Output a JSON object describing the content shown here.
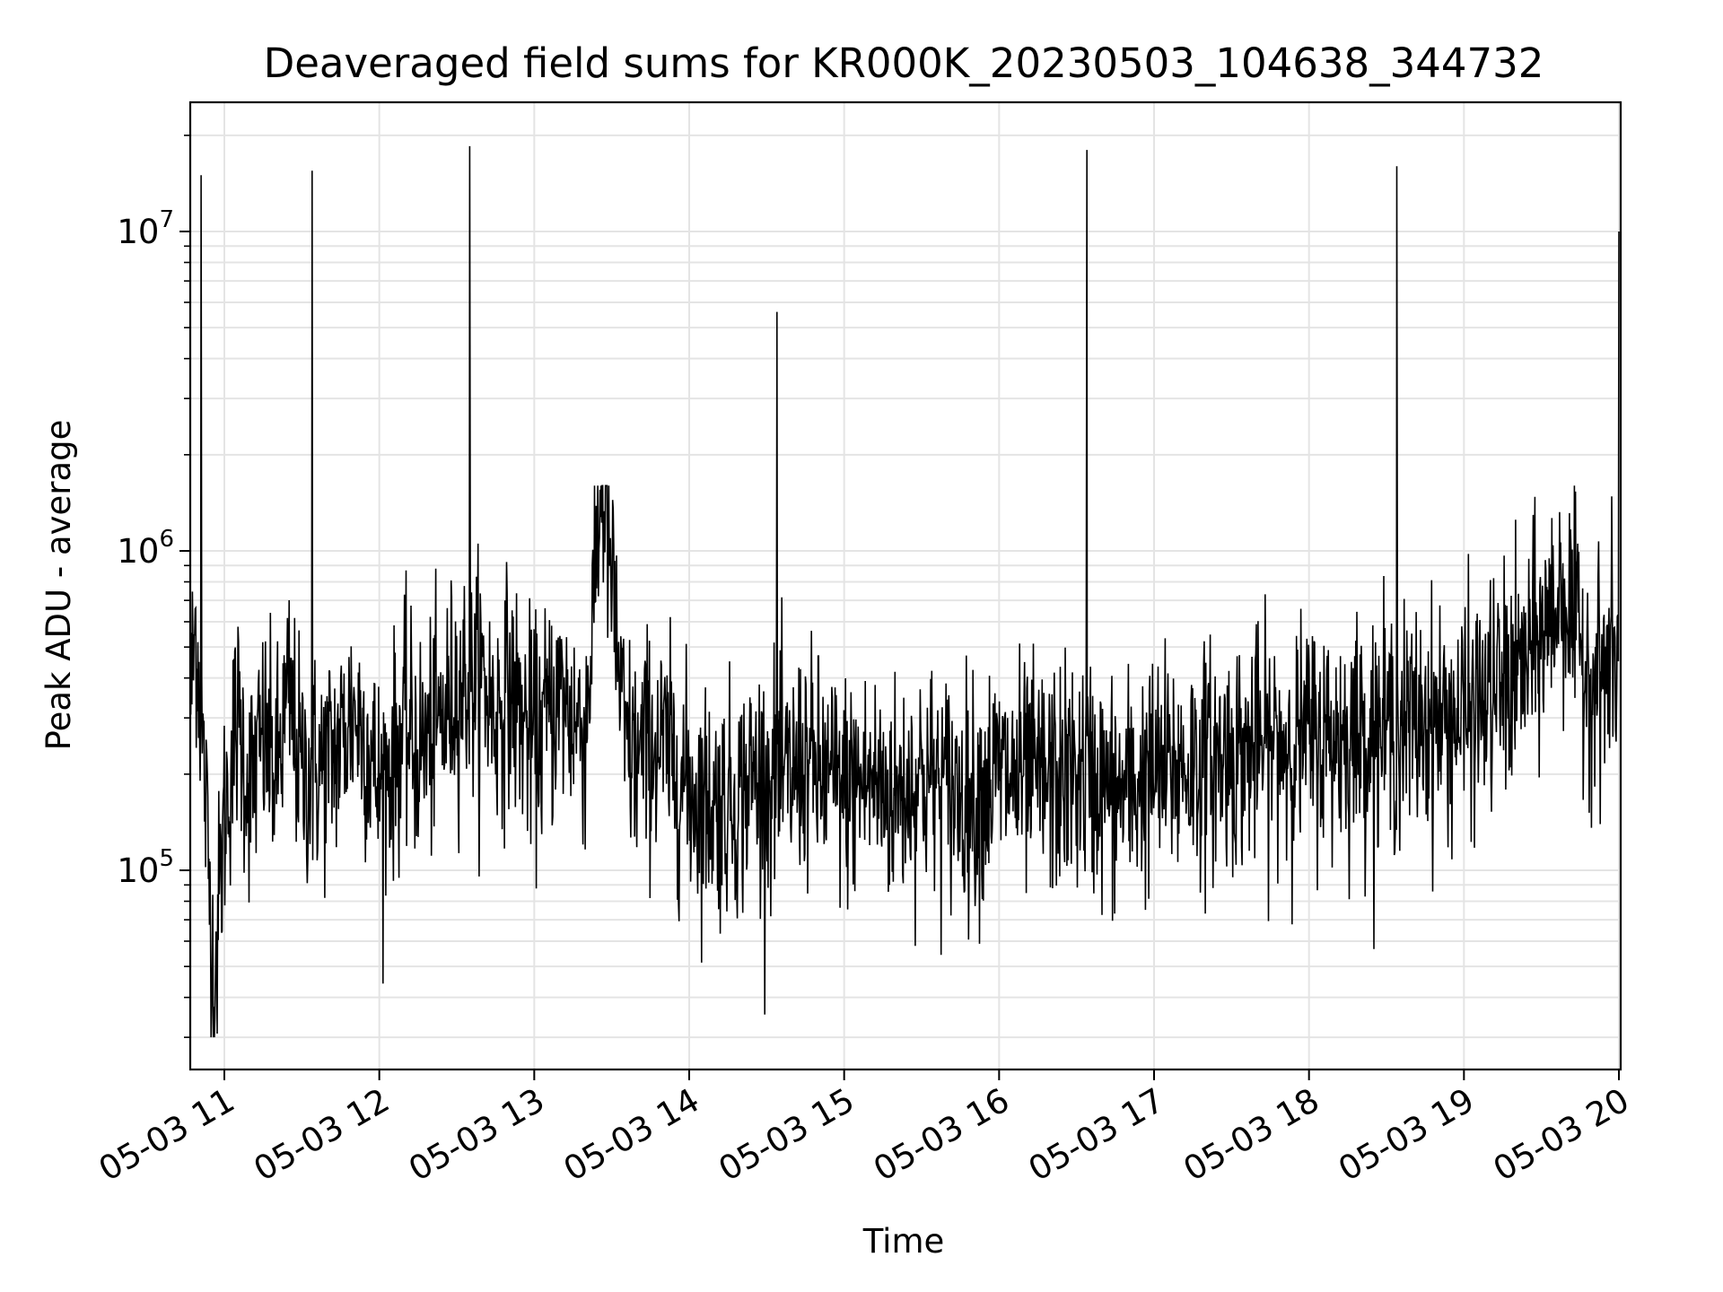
{
  "chart_data": {
    "type": "line",
    "title": "Deaveraged field sums for KR000K_20230503_104638_344732",
    "xlabel": "Time",
    "ylabel": "Peak ADU - average",
    "x_range": [
      "2023-05-03 10:46:38",
      "2023-05-03 20:00:00"
    ],
    "y_scale": "log",
    "ylim": [
      24000,
      25000000
    ],
    "grid": true,
    "x_tick_labels": [
      "05-03 11",
      "05-03 12",
      "05-03 13",
      "05-03 14",
      "05-03 15",
      "05-03 16",
      "05-03 17",
      "05-03 18",
      "05-03 19",
      "05-03 20"
    ],
    "y_tick_labels": [
      {
        "value": 100000,
        "base": "10",
        "exp": "5"
      },
      {
        "value": 1000000,
        "base": "10",
        "exp": "6"
      },
      {
        "value": 10000000,
        "base": "10",
        "exp": "7"
      }
    ],
    "series": [
      {
        "color": "#000000",
        "points": [
          [
            "2023-05-03 10:47:00",
            350000
          ],
          [
            "2023-05-03 10:49:00",
            600000
          ],
          [
            "2023-05-03 10:51:00",
            15000000
          ],
          [
            "2023-05-03 10:53:00",
            150000
          ],
          [
            "2023-05-03 10:56:00",
            42000
          ],
          [
            "2023-05-03 11:00:00",
            150000
          ],
          [
            "2023-05-03 11:05:00",
            300000
          ],
          [
            "2023-05-03 11:10:00",
            180000
          ],
          [
            "2023-05-03 11:15:00",
            260000
          ],
          [
            "2023-05-03 11:20:00",
            200000
          ],
          [
            "2023-05-03 11:25:00",
            350000
          ],
          [
            "2023-05-03 11:30:00",
            200000
          ],
          [
            "2023-05-03 11:34:00",
            15500000
          ],
          [
            "2023-05-03 11:38:00",
            210000
          ],
          [
            "2023-05-03 11:45:00",
            250000
          ],
          [
            "2023-05-03 11:50:00",
            320000
          ],
          [
            "2023-05-03 11:55:00",
            260000
          ],
          [
            "2023-05-03 12:00:00",
            180000
          ],
          [
            "2023-05-03 12:05:00",
            220000
          ],
          [
            "2023-05-03 12:10:00",
            280000
          ],
          [
            "2023-05-03 12:15:00",
            240000
          ],
          [
            "2023-05-03 12:20:00",
            260000
          ],
          [
            "2023-05-03 12:25:00",
            300000
          ],
          [
            "2023-05-03 12:30:00",
            380000
          ],
          [
            "2023-05-03 12:35:00",
            18500000
          ],
          [
            "2023-05-03 12:40:00",
            400000
          ],
          [
            "2023-05-03 12:45:00",
            300000
          ],
          [
            "2023-05-03 12:50:00",
            380000
          ],
          [
            "2023-05-03 12:55:00",
            300000
          ],
          [
            "2023-05-03 13:00:00",
            250000
          ],
          [
            "2023-05-03 13:05:00",
            300000
          ],
          [
            "2023-05-03 13:10:00",
            350000
          ],
          [
            "2023-05-03 13:15:00",
            300000
          ],
          [
            "2023-05-03 13:20:00",
            280000
          ],
          [
            "2023-05-03 13:26:00",
            1700000
          ],
          [
            "2023-05-03 13:30:00",
            800000
          ],
          [
            "2023-05-03 13:35:00",
            250000
          ],
          [
            "2023-05-03 13:40:00",
            220000
          ],
          [
            "2023-05-03 13:45:00",
            250000
          ],
          [
            "2023-05-03 13:50:00",
            240000
          ],
          [
            "2023-05-03 14:00:00",
            180000
          ],
          [
            "2023-05-03 14:10:00",
            160000
          ],
          [
            "2023-05-03 14:20:00",
            170000
          ],
          [
            "2023-05-03 14:25:00",
            200000
          ],
          [
            "2023-05-03 14:30:00",
            190000
          ],
          [
            "2023-05-03 14:34:00",
            5600000
          ],
          [
            "2023-05-03 14:38:00",
            190000
          ],
          [
            "2023-05-03 14:45:00",
            220000
          ],
          [
            "2023-05-03 14:50:00",
            200000
          ],
          [
            "2023-05-03 15:00:00",
            180000
          ],
          [
            "2023-05-03 15:10:00",
            190000
          ],
          [
            "2023-05-03 15:20:00",
            170000
          ],
          [
            "2023-05-03 15:30:00",
            200000
          ],
          [
            "2023-05-03 15:40:00",
            180000
          ],
          [
            "2023-05-03 15:50:00",
            170000
          ],
          [
            "2023-05-03 16:00:00",
            200000
          ],
          [
            "2023-05-03 16:10:00",
            190000
          ],
          [
            "2023-05-03 16:20:00",
            190000
          ],
          [
            "2023-05-03 16:30:00",
            200000
          ],
          [
            "2023-05-03 16:34:00",
            18000000
          ],
          [
            "2023-05-03 16:38:00",
            190000
          ],
          [
            "2023-05-03 16:45:00",
            170000
          ],
          [
            "2023-05-03 16:50:00",
            180000
          ],
          [
            "2023-05-03 17:00:00",
            200000
          ],
          [
            "2023-05-03 17:10:00",
            210000
          ],
          [
            "2023-05-03 17:20:00",
            220000
          ],
          [
            "2023-05-03 17:30:00",
            230000
          ],
          [
            "2023-05-03 17:40:00",
            240000
          ],
          [
            "2023-05-03 17:50:00",
            250000
          ],
          [
            "2023-05-03 18:00:00",
            260000
          ],
          [
            "2023-05-03 18:10:00",
            260000
          ],
          [
            "2023-05-03 18:20:00",
            270000
          ],
          [
            "2023-05-03 18:30:00",
            280000
          ],
          [
            "2023-05-03 18:34:00",
            16000000
          ],
          [
            "2023-05-03 18:38:00",
            280000
          ],
          [
            "2023-05-03 18:45:00",
            300000
          ],
          [
            "2023-05-03 18:50:00",
            290000
          ],
          [
            "2023-05-03 19:00:00",
            300000
          ],
          [
            "2023-05-03 19:10:00",
            350000
          ],
          [
            "2023-05-03 19:20:00",
            400000
          ],
          [
            "2023-05-03 19:25:00",
            450000
          ],
          [
            "2023-05-03 19:30:00",
            550000
          ],
          [
            "2023-05-03 19:35:00",
            650000
          ],
          [
            "2023-05-03 19:38:00",
            800000
          ],
          [
            "2023-05-03 19:42:00",
            600000
          ],
          [
            "2023-05-03 19:45:00",
            500000
          ],
          [
            "2023-05-03 19:50:00",
            400000
          ],
          [
            "2023-05-03 19:55:00",
            420000
          ],
          [
            "2023-05-03 19:59:00",
            450000
          ],
          [
            "2023-05-03 20:00:00",
            10000000
          ]
        ]
      }
    ]
  }
}
